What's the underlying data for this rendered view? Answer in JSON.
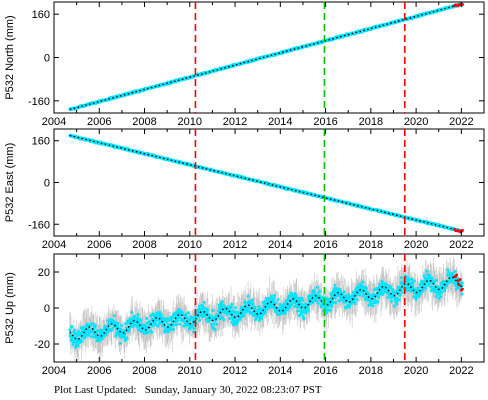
{
  "footer": {
    "label": "Plot Last Updated:",
    "timestamp": "Sunday, January 30, 2022 08:23:07 PST"
  },
  "colors": {
    "scatter": "#00e5ff",
    "error_bars": "#b4b4b4",
    "model_line": "#000000",
    "offset_marker": "#ff0000",
    "equipment_change": "#ff0000",
    "earthquake_marker": "#00c000"
  },
  "chart_data": [
    {
      "type": "scatter",
      "station": "P532",
      "ylabel": "P532 North (mm)",
      "xlim": [
        2004,
        2023
      ],
      "ylim": [
        -205,
        205
      ],
      "x_ticks": [
        "2004",
        "2006",
        "2008",
        "2010",
        "2012",
        "2014",
        "2016",
        "2018",
        "2020",
        "2022"
      ],
      "y_ticks": [
        -160,
        0,
        160
      ],
      "start": {
        "x": 2004.7,
        "y": -192
      },
      "end": {
        "x": 2022.05,
        "y": 198
      },
      "noise_mm": 3,
      "error_bar_mm": 4,
      "vertical_lines": [
        {
          "x": 2010.25,
          "kind": "equipment_change",
          "color": "#ff0000"
        },
        {
          "x": 2015.95,
          "kind": "earthquake",
          "color": "#00c000"
        },
        {
          "x": 2019.5,
          "kind": "equipment_change",
          "color": "#ff0000"
        }
      ]
    },
    {
      "type": "scatter",
      "station": "P532",
      "ylabel": "P532 East (mm)",
      "xlim": [
        2004,
        2023
      ],
      "ylim": [
        -205,
        205
      ],
      "x_ticks": [
        "2004",
        "2006",
        "2008",
        "2010",
        "2012",
        "2014",
        "2016",
        "2018",
        "2020",
        "2022"
      ],
      "y_ticks": [
        -160,
        0,
        160
      ],
      "start": {
        "x": 2004.7,
        "y": 180
      },
      "end": {
        "x": 2022.05,
        "y": -187
      },
      "noise_mm": 3,
      "error_bar_mm": 4,
      "vertical_lines": [
        {
          "x": 2010.25,
          "kind": "equipment_change",
          "color": "#ff0000"
        },
        {
          "x": 2015.95,
          "kind": "earthquake",
          "color": "#00c000"
        },
        {
          "x": 2019.5,
          "kind": "equipment_change",
          "color": "#ff0000"
        }
      ]
    },
    {
      "type": "scatter",
      "station": "P532",
      "ylabel": "P532 Up (mm)",
      "xlim": [
        2004,
        2023
      ],
      "ylim": [
        -30,
        30
      ],
      "x_ticks": [
        "2004",
        "2006",
        "2008",
        "2010",
        "2012",
        "2014",
        "2016",
        "2018",
        "2020",
        "2022"
      ],
      "y_ticks": [
        -20,
        0,
        20
      ],
      "start": {
        "x": 2004.7,
        "y": -15
      },
      "end": {
        "x": 2022.05,
        "y": 15
      },
      "seasonal_amplitude_mm": 3,
      "noise_mm": 4,
      "error_bar_mm": 8,
      "vertical_lines": [
        {
          "x": 2010.25,
          "kind": "equipment_change",
          "color": "#ff0000"
        },
        {
          "x": 2015.95,
          "kind": "earthquake",
          "color": "#00c000"
        },
        {
          "x": 2019.5,
          "kind": "equipment_change",
          "color": "#ff0000"
        }
      ]
    }
  ]
}
